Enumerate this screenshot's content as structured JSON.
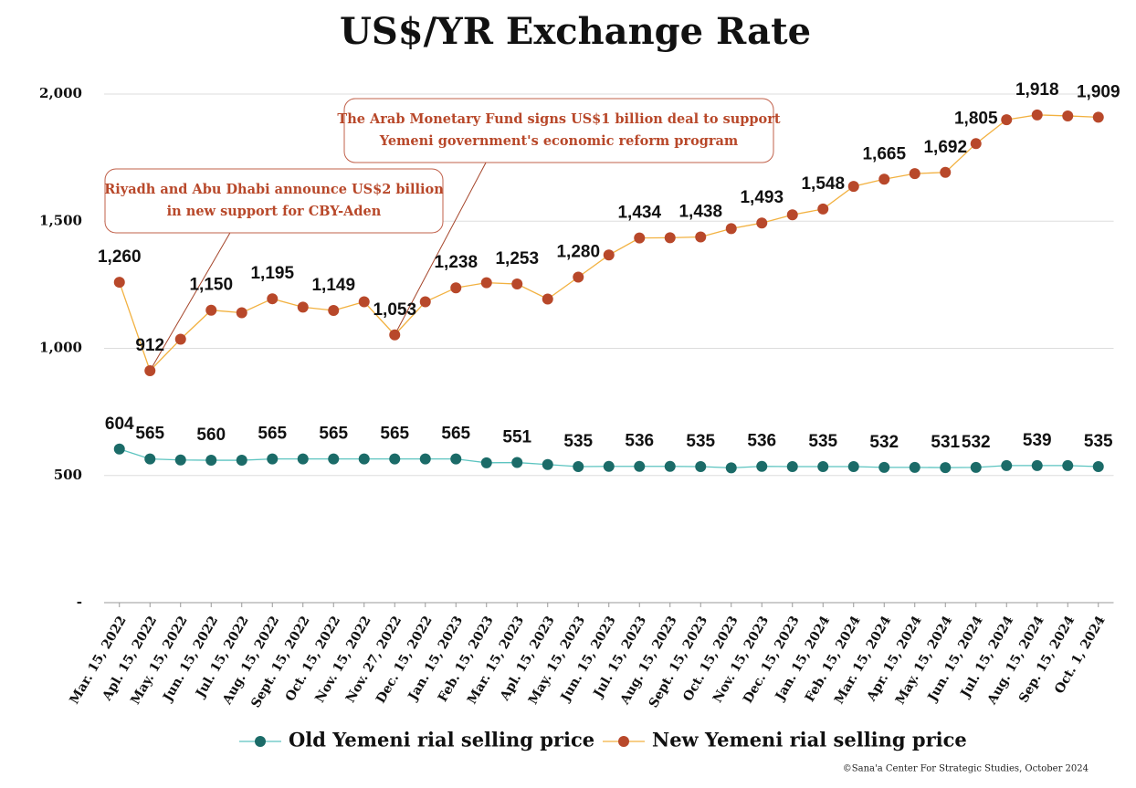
{
  "chart_data": {
    "type": "line",
    "title": "US$/YR Exchange Rate",
    "source": "©Sana'a Center For Strategic Studies, October 2024",
    "categories": [
      "Mar. 15, 2022",
      "Apl. 15, 2022",
      "May. 15, 2022",
      "Jun. 15, 2022",
      "Jul. 15, 2022",
      "Aug. 15, 2022",
      "Sept. 15, 2022",
      "Oct. 15, 2022",
      "Nov. 15, 2022",
      "Nov. 27, 2022",
      "Dec. 15, 2022",
      "Jan. 15, 2023",
      "Feb. 15, 2023",
      "Mar. 15, 2023",
      "Apl. 15, 2023",
      "May. 15, 2023",
      "Jun. 15, 2023",
      "Jul. 15, 2023",
      "Aug. 15, 2023",
      "Sept. 15, 2023",
      "Oct. 15, 2023",
      "Nov. 15, 2023",
      "Dec. 15, 2023",
      "Jan. 15, 2024",
      "Feb. 15, 2024",
      "Mar. 15, 2024",
      "Apr. 15, 2024",
      "May. 15, 2024",
      "Jun. 15, 2024",
      "Jul. 15, 2024",
      "Aug. 15, 2024",
      "Sep. 15, 2024",
      "Oct. 1, 2024"
    ],
    "series": [
      {
        "name": "Old Yemeni rial selling price",
        "color": "#1b6b68",
        "line_color": "#5cc4c0",
        "values": [
          604,
          565,
          561,
          560,
          560,
          565,
          565,
          565,
          565,
          565,
          565,
          565,
          550,
          551,
          543,
          535,
          536,
          536,
          536,
          535,
          530,
          536,
          535,
          535,
          535,
          532,
          532,
          531,
          532,
          539,
          539,
          539,
          535
        ],
        "value_labels": [
          "604",
          "565",
          null,
          "560",
          null,
          "565",
          null,
          "565",
          null,
          "565",
          null,
          "565",
          null,
          "551",
          null,
          "535",
          null,
          "536",
          null,
          "535",
          null,
          "536",
          null,
          "535",
          null,
          "532",
          null,
          "531",
          "532",
          null,
          "539",
          null,
          "535"
        ]
      },
      {
        "name": "New Yemeni rial selling price",
        "color": "#b8482a",
        "line_color": "#f2b140",
        "values": [
          1260,
          912,
          1036,
          1150,
          1140,
          1195,
          1162,
          1149,
          1183,
          1053,
          1183,
          1238,
          1258,
          1253,
          1194,
          1280,
          1367,
          1434,
          1435,
          1438,
          1471,
          1493,
          1525,
          1548,
          1637,
          1665,
          1687,
          1692,
          1805,
          1899,
          1918,
          1914,
          1909
        ],
        "value_labels": [
          "1,260",
          "912",
          null,
          "1,150",
          null,
          "1,195",
          null,
          "1,149",
          null,
          "1,053",
          null,
          "1,238",
          null,
          "1,253",
          null,
          "1,280",
          null,
          "1,434",
          null,
          "1,438",
          null,
          "1,493",
          null,
          "1,548",
          null,
          "1,665",
          null,
          "1,692",
          "1,805",
          null,
          "1,918",
          null,
          "1,909"
        ]
      }
    ],
    "ylim": [
      0,
      2000
    ],
    "yticks": [
      {
        "value": 0,
        "label": "-"
      },
      500,
      {
        "value": 1000,
        "label": "1,000"
      },
      {
        "value": 1500,
        "label": "1,500"
      },
      {
        "value": 2000,
        "label": "2,000"
      }
    ],
    "grid": true,
    "legend": "bottom",
    "annotations": [
      {
        "lines": [
          "Riyadh and Abu Dhabi announce US$2 billion",
          "in new support for CBY-Aden"
        ]
      },
      {
        "lines": [
          "The Arab Monetary Fund signs US$1 billion deal to support",
          "Yemeni government's economic reform program"
        ]
      }
    ]
  }
}
